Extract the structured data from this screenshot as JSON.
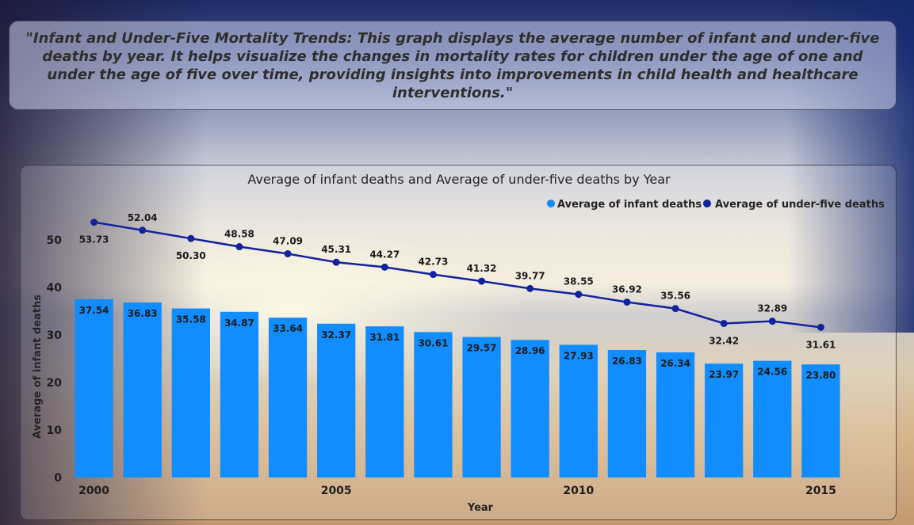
{
  "header": {
    "description": "\"Infant and Under-Five Mortality Trends: This graph displays the average number of infant and under-five deaths by year. It helps visualize the changes in mortality rates for children under the age of one and under the age of five over time, providing insights into improvements in child health and healthcare interventions.\""
  },
  "colors": {
    "infant_bar": "#118DFF",
    "under_five_line": "#12239E"
  },
  "chart_data": {
    "type": "bar",
    "title": "Average of infant deaths and Average of under-five deaths by Year",
    "xlabel": "Year",
    "ylabel": "Average of infant deaths",
    "legend_position": "top-right",
    "ylim": [
      0,
      55
    ],
    "y_ticks": [
      0,
      10,
      20,
      30,
      40,
      50
    ],
    "x_ticks": [
      2000,
      2005,
      2010,
      2015
    ],
    "grid": false,
    "categories": [
      2000,
      2001,
      2002,
      2003,
      2004,
      2005,
      2006,
      2007,
      2008,
      2009,
      2010,
      2011,
      2012,
      2013,
      2014,
      2015
    ],
    "series": [
      {
        "name": "Average of infant deaths",
        "type": "bar",
        "values": [
          37.54,
          36.83,
          35.58,
          34.87,
          33.64,
          32.37,
          31.81,
          30.61,
          29.57,
          28.96,
          27.93,
          26.83,
          26.34,
          23.97,
          24.56,
          23.8
        ],
        "labels": [
          "37.54",
          "36.83",
          "35.58",
          "34.87",
          "33.64",
          "32.37",
          "31.81",
          "30.61",
          "29.57",
          "28.96",
          "27.93",
          "26.83",
          "26.34",
          "23.97",
          "24.56",
          "23.80"
        ]
      },
      {
        "name": "Average of under-five deaths",
        "type": "line",
        "values": [
          53.73,
          52.04,
          50.3,
          48.58,
          47.09,
          45.31,
          44.27,
          42.73,
          41.32,
          39.77,
          38.55,
          36.92,
          35.56,
          32.42,
          32.89,
          31.61
        ],
        "labels": [
          "53.73",
          "52.04",
          "50.30",
          "48.58",
          "47.09",
          "45.31",
          "44.27",
          "42.73",
          "41.32",
          "39.77",
          "38.55",
          "36.92",
          "35.56",
          "32.42",
          "32.89",
          "31.61"
        ]
      }
    ]
  }
}
